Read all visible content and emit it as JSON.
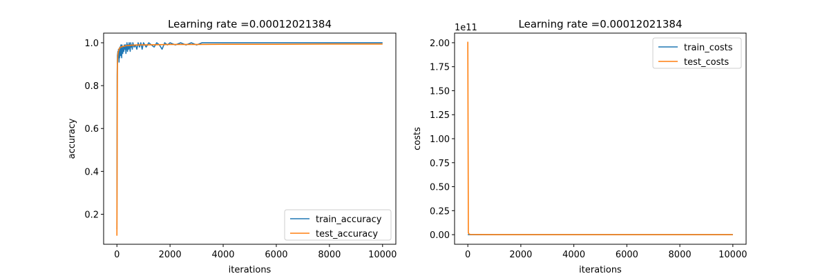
{
  "colors": {
    "train": "#1f77b4",
    "test": "#ff7f0e",
    "axes": "#000000",
    "legend_border": "#cccccc"
  },
  "chart_data": [
    {
      "type": "line",
      "title": "Learning rate =0.00012021384",
      "xlabel": "iterations",
      "ylabel": "accuracy",
      "xlim": [
        -500,
        10500
      ],
      "ylim": [
        0.06,
        1.045
      ],
      "xticks": [
        0,
        2000,
        4000,
        6000,
        8000,
        10000
      ],
      "yticks": [
        0.2,
        0.4,
        0.6,
        0.8,
        1.0
      ],
      "xtick_labels": [
        "0",
        "2000",
        "4000",
        "6000",
        "8000",
        "10000"
      ],
      "ytick_labels": [
        "0.2",
        "0.4",
        "0.6",
        "0.8",
        "1.0"
      ],
      "grid": false,
      "legend_position": "lower right",
      "series": [
        {
          "name": "train_accuracy",
          "x": [
            0,
            10,
            20,
            30,
            40,
            50,
            60,
            70,
            80,
            90,
            100,
            110,
            120,
            130,
            140,
            150,
            160,
            170,
            180,
            190,
            200,
            220,
            240,
            260,
            280,
            300,
            320,
            340,
            360,
            380,
            400,
            420,
            440,
            460,
            480,
            500,
            520,
            540,
            560,
            580,
            600,
            650,
            700,
            750,
            800,
            850,
            900,
            950,
            1000,
            1100,
            1200,
            1300,
            1400,
            1500,
            1600,
            1700,
            1800,
            1900,
            2000,
            2200,
            2400,
            2600,
            2800,
            3000,
            3200,
            3500,
            4000,
            5000,
            6000,
            7000,
            8000,
            9000,
            10000
          ],
          "y": [
            0.13,
            0.85,
            0.94,
            0.95,
            0.96,
            0.93,
            0.97,
            0.95,
            0.91,
            0.96,
            0.93,
            0.98,
            0.95,
            0.97,
            0.94,
            0.99,
            0.96,
            0.98,
            0.93,
            0.99,
            0.97,
            0.95,
            0.98,
            0.96,
            0.99,
            0.97,
            0.99,
            0.95,
            0.98,
            1.0,
            0.96,
            0.99,
            0.97,
            1.0,
            0.98,
            0.96,
            1.0,
            0.98,
            0.99,
            0.97,
            1.0,
            0.98,
            0.99,
            0.97,
            1.0,
            0.98,
            1.0,
            0.97,
            1.0,
            0.98,
            1.0,
            0.99,
            0.98,
            1.0,
            0.99,
            0.97,
            1.0,
            0.99,
            1.0,
            0.99,
            1.0,
            0.99,
            1.0,
            0.99,
            1.0,
            1.0,
            1.0,
            1.0,
            1.0,
            1.0,
            1.0,
            1.0,
            1.0
          ]
        },
        {
          "name": "test_accuracy",
          "x": [
            0,
            10,
            20,
            30,
            40,
            60,
            80,
            100,
            150,
            200,
            300,
            400,
            600,
            800,
            1000,
            1500,
            2000,
            3000,
            4000,
            6000,
            8000,
            10000
          ],
          "y": [
            0.1,
            0.55,
            0.9,
            0.93,
            0.95,
            0.96,
            0.97,
            0.975,
            0.98,
            0.982,
            0.985,
            0.987,
            0.989,
            0.99,
            0.99,
            0.991,
            0.992,
            0.992,
            0.993,
            0.993,
            0.994,
            0.994
          ]
        }
      ]
    },
    {
      "type": "line",
      "title": "Learning rate =0.00012021384",
      "xlabel": "iterations",
      "ylabel": "costs",
      "offset_text": "1e11",
      "xlim": [
        -500,
        10500
      ],
      "ylim": [
        -0.1,
        2.1
      ],
      "xticks": [
        0,
        2000,
        4000,
        6000,
        8000,
        10000
      ],
      "yticks": [
        0.0,
        0.25,
        0.5,
        0.75,
        1.0,
        1.25,
        1.5,
        1.75,
        2.0
      ],
      "xtick_labels": [
        "0",
        "2000",
        "4000",
        "6000",
        "8000",
        "10000"
      ],
      "ytick_labels": [
        "0.00",
        "0.25",
        "0.50",
        "0.75",
        "1.00",
        "1.25",
        "1.50",
        "1.75",
        "2.00"
      ],
      "grid": false,
      "legend_position": "upper right",
      "series": [
        {
          "name": "train_costs",
          "x": [
            0,
            50,
            100,
            10000
          ],
          "y": [
            0,
            0,
            0,
            0
          ]
        },
        {
          "name": "test_costs",
          "x": [
            0,
            10,
            20,
            50,
            100,
            500,
            1000,
            5000,
            10000
          ],
          "y": [
            2.01,
            1.0,
            0.02,
            0.005,
            0.002,
            0.001,
            0.0,
            0.0,
            0.0
          ]
        }
      ]
    }
  ]
}
